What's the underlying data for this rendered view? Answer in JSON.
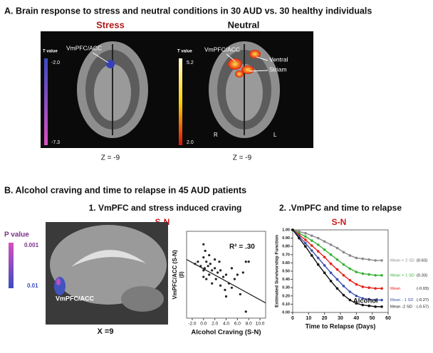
{
  "panel_a": {
    "title": "A. Brain response to stress and neutral conditions in 30 AUD vs. 30 healthy individuals",
    "stress": {
      "heading": "Stress",
      "roi_label": "VmPFC/ACC",
      "colorbar_title": "T value",
      "colorbar_top": "-2.0",
      "colorbar_bottom": "-7.3",
      "slice": "Z = -9"
    },
    "neutral": {
      "heading": "Neutral",
      "roi_label": "VmPFC/ACC",
      "roi_label_2": "Ventral",
      "roi_label_3": "Striam",
      "colorbar_title": "T value",
      "colorbar_top": "5.2",
      "colorbar_bottom": "2.0",
      "side_left": "R",
      "side_right": "L",
      "slice": "Z = -9"
    }
  },
  "panel_b": {
    "title": "B. Alcohol craving and time to relapse in 45 AUD patients",
    "sub1": "1. VmPFC and stress induced craving",
    "sub2": "2. .VmPFC and time to relapse",
    "contrast_1": "S-N",
    "contrast_2": "S-N",
    "colorbar_title": "P value",
    "colorbar_top": "0.001",
    "colorbar_bottom": "0.01",
    "roi_label": "VmPFC/ACC",
    "slice": "X =9"
  },
  "chart_data": [
    {
      "type": "scatter",
      "x_label": "Alcohol Craving (S-N)",
      "y_label": "VmPFC/ACC (S-N)",
      "y_label_2": "(β)",
      "annotation": "R² = .30",
      "color": "#222222",
      "x": [
        -1.5,
        -1.0,
        -0.5,
        0,
        0,
        0,
        0,
        0.2,
        0.3,
        0.5,
        0.5,
        0.8,
        1.0,
        1.0,
        1.2,
        1.5,
        1.5,
        2.0,
        2.0,
        2.2,
        2.5,
        2.8,
        3.0,
        3.0,
        3.5,
        3.8,
        4.0,
        4.0,
        4.5,
        5.0,
        5.0,
        5.5,
        6.0,
        6.5,
        7.0,
        7.5,
        7.5,
        8.0
      ],
      "values": [
        0.25,
        0.3,
        0.2,
        0.7,
        0.4,
        0.1,
        -0.05,
        0.15,
        0.55,
        0.3,
        -0.1,
        0.2,
        0.45,
        0.0,
        0.25,
        0.1,
        -0.2,
        0.35,
        0.15,
        -0.1,
        0.05,
        0.3,
        -0.25,
        0.1,
        -0.05,
        -0.35,
        0.0,
        -0.5,
        -0.2,
        0.15,
        -0.3,
        -0.1,
        0.0,
        -0.45,
        0.05,
        0.3,
        -0.85,
        0.3
      ],
      "fit_line": {
        "x": [
          -3,
          11
        ],
        "values": [
          0.35,
          -0.65
        ]
      },
      "xlim": [
        -3,
        11
      ],
      "ylim": [
        -1,
        1
      ],
      "xticks": [
        {
          "value": -2,
          "label": "-2.0"
        },
        {
          "value": 0,
          "label": "0.0"
        },
        {
          "value": 2,
          "label": "2.0"
        },
        {
          "value": 4,
          "label": "4.0"
        },
        {
          "value": 6,
          "label": "6.0"
        },
        {
          "value": 8,
          "label": "8.0"
        },
        {
          "value": 10,
          "label": "10.0"
        }
      ]
    },
    {
      "type": "line",
      "x_label": "Time to Relapse (Days)",
      "y_label": "Estimated Survivorship Function",
      "annotation": "Alcohol",
      "x": [
        0,
        4,
        8,
        12,
        16,
        20,
        24,
        28,
        32,
        36,
        40,
        44,
        48,
        52,
        56
      ],
      "series": [
        {
          "name": "Mean + 2 SD",
          "label": "(0.63)",
          "color": "#8a8a8a",
          "values": [
            1.0,
            0.98,
            0.96,
            0.93,
            0.9,
            0.86,
            0.82,
            0.78,
            0.73,
            0.69,
            0.66,
            0.65,
            0.64,
            0.63,
            0.63
          ]
        },
        {
          "name": "Mean + 1 SD",
          "label": "(0.33)",
          "color": "#36b336",
          "values": [
            1.0,
            0.96,
            0.92,
            0.87,
            0.82,
            0.76,
            0.7,
            0.64,
            0.58,
            0.53,
            0.49,
            0.47,
            0.46,
            0.45,
            0.45
          ]
        },
        {
          "name": "Mean",
          "label": "(-0.03)",
          "color": "#e8201a",
          "values": [
            1.0,
            0.94,
            0.88,
            0.81,
            0.74,
            0.67,
            0.59,
            0.52,
            0.45,
            0.39,
            0.34,
            0.31,
            0.3,
            0.29,
            0.29
          ]
        },
        {
          "name": "Mean - 1 SD",
          "label": "(-0.27)",
          "color": "#3a4fb0",
          "values": [
            1.0,
            0.92,
            0.84,
            0.75,
            0.66,
            0.57,
            0.48,
            0.4,
            0.32,
            0.25,
            0.2,
            0.17,
            0.16,
            0.15,
            0.15
          ]
        },
        {
          "name": "Mean -2 SD",
          "label": "(-0.57)",
          "color": "#111111",
          "values": [
            1.0,
            0.9,
            0.8,
            0.69,
            0.58,
            0.48,
            0.38,
            0.29,
            0.21,
            0.15,
            0.11,
            0.09,
            0.08,
            0.07,
            0.07
          ]
        }
      ],
      "xlim": [
        0,
        60
      ],
      "ylim": [
        0,
        1
      ],
      "xticks": [
        0,
        10,
        20,
        30,
        40,
        50,
        60
      ],
      "yticks": [
        {
          "value": 0,
          "label": "0.00"
        },
        {
          "value": 0.1,
          "label": "0.10"
        },
        {
          "value": 0.2,
          "label": "0.20"
        },
        {
          "value": 0.3,
          "label": "0.30"
        },
        {
          "value": 0.4,
          "label": "0.40"
        },
        {
          "value": 0.5,
          "label": "0.50"
        },
        {
          "value": 0.6,
          "label": "0.60"
        },
        {
          "value": 0.7,
          "label": "0.70"
        },
        {
          "value": 0.8,
          "label": "0.80"
        },
        {
          "value": 0.9,
          "label": "0.90"
        },
        {
          "value": 1,
          "label": "1.00"
        }
      ]
    }
  ]
}
